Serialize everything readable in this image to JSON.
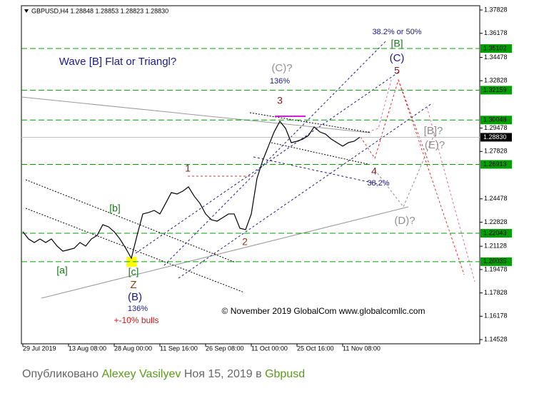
{
  "chart_data": {
    "type": "line",
    "title": "GBPUSD,H4  1.28848 1.28853 1.28823 1.28830",
    "categories": [
      "29 Jul 2019",
      null,
      null,
      null,
      null,
      null,
      null,
      null,
      "13 Aug 08:00",
      null,
      null,
      null,
      null,
      null,
      null,
      null,
      "28 Aug 00:00",
      null,
      null,
      null,
      null,
      null,
      null,
      null,
      "11 Sep 16:00",
      null,
      null,
      null,
      null,
      null,
      null,
      null,
      "26 Sep 08:00",
      null,
      null,
      null,
      null,
      null,
      null,
      null,
      "11 Oct 00:00",
      null,
      null,
      null,
      null,
      null,
      null,
      null,
      "25 Oct 16:00",
      null,
      null,
      null,
      null,
      null,
      null,
      null,
      "11 Nov 08:00",
      null,
      null,
      null
    ],
    "values": [
      1.2215,
      1.2164,
      1.2139,
      1.2164,
      1.2139,
      1.2164,
      1.2114,
      1.2078,
      1.2088,
      1.2099,
      1.2139,
      1.2114,
      1.2164,
      1.2189,
      1.2265,
      1.225,
      1.2215,
      1.2164,
      1.2099,
      1.2028,
      1.2189,
      1.2341,
      1.2351,
      1.2366,
      1.2341,
      1.2416,
      1.2492,
      1.2482,
      1.2502,
      1.2532,
      1.2467,
      1.2416,
      1.2341,
      1.23,
      1.229,
      1.2315,
      1.2341,
      1.2341,
      1.224,
      1.223,
      1.2341,
      1.2593,
      1.2719,
      1.282,
      1.2921,
      1.2996,
      1.2946,
      1.2845,
      1.2855,
      1.287,
      1.2895,
      1.2956,
      1.2921,
      1.2905,
      1.287,
      1.2845,
      1.282,
      1.2845,
      1.2855,
      1.2883
    ],
    "color": "#000000",
    "ylim": [
      1.1423,
      1.3813
    ],
    "yticks": [
      1.37828,
      1.36178,
      1.34478,
      1.32828,
      1.29478,
      1.27828,
      1.24478,
      1.22828,
      1.21128,
      1.19478,
      1.17828,
      1.16178,
      1.14528
    ],
    "levels": [
      1.35102,
      1.32159,
      1.30048,
      1.26913,
      1.22043,
      1.20035
    ],
    "level_color": "#00a000",
    "last_price": {
      "value": 1.2883,
      "label": "1.28830"
    },
    "annotations": [
      {
        "text": "Wave [B] Flat or Triangl?",
        "color": "#1a1a8c"
      },
      {
        "text": "(C)?",
        "color": "#909090"
      },
      {
        "text": "136%",
        "color": "#1a1a8c"
      },
      {
        "text": "3",
        "color": "#8b1a1a"
      },
      {
        "text": "1",
        "color": "#8b1a1a"
      },
      {
        "text": "2",
        "color": "#8b3a1a"
      },
      {
        "text": "4",
        "color": "#8b1a1a"
      },
      {
        "text": "38,2%",
        "color": "#1a1a8c"
      },
      {
        "text": "5",
        "color": "#8b1a1a"
      },
      {
        "text": "(C)",
        "color": "#1a1a8c"
      },
      {
        "text": "[B]",
        "color": "#1a7a1a"
      },
      {
        "text": "38.2% or 50%",
        "color": "#1a1a8c"
      },
      {
        "text": "[B]?",
        "color": "#909090"
      },
      {
        "text": "(E)?",
        "color": "#909090"
      },
      {
        "text": "(D)?",
        "color": "#909090"
      },
      {
        "text": "[b]",
        "color": "#1a7a1a"
      },
      {
        "text": "[a]",
        "color": "#1a7a1a"
      },
      {
        "text": "[c]",
        "color": "#1a7a1a"
      },
      {
        "text": "Z",
        "color": "#8b3a1a"
      },
      {
        "text": "(B)",
        "color": "#1a1a8c"
      },
      {
        "text": "136%",
        "color": "#1a1a8c"
      },
      {
        "text": "+-10% bulls",
        "color": "#e01010"
      },
      {
        "text": "© November 2019 GlobalCom www.globalcomllc.com",
        "color": "#000000"
      }
    ]
  },
  "footer": {
    "prefix": "Опубликовано",
    "author": "Alexey Vasilyev",
    "date": "Ноя 15, 2019 в",
    "tag": "Gbpusd"
  }
}
